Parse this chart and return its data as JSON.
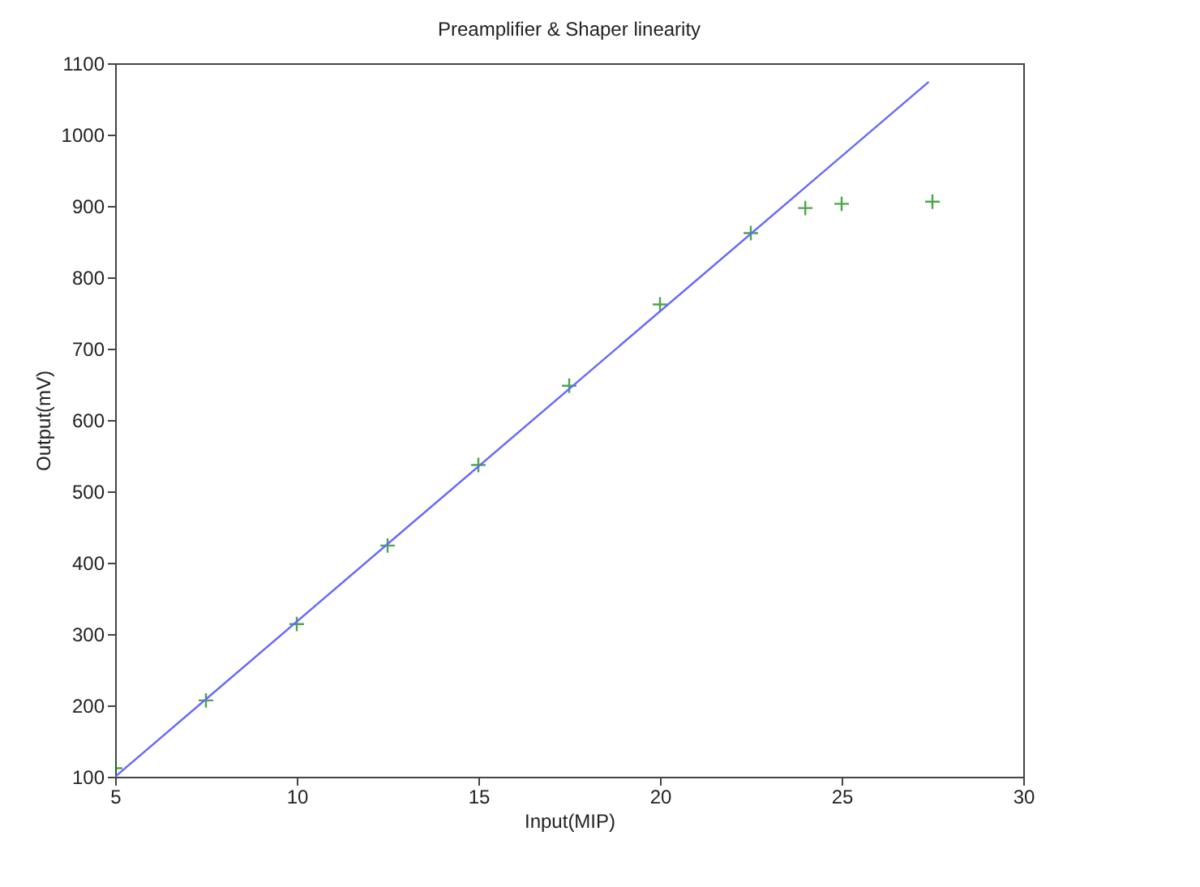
{
  "chart_data": {
    "type": "scatter",
    "title": "Preamplifier & Shaper linearity",
    "xlabel": "Input(MIP)",
    "ylabel": "Output(mV)",
    "xlim": [
      5,
      30
    ],
    "xticks": [
      5,
      10,
      15,
      20,
      25,
      30
    ],
    "ylim": [
      100,
      1100
    ],
    "yticks": [
      100,
      200,
      300,
      400,
      500,
      600,
      700,
      800,
      900,
      1000,
      1100
    ],
    "grid": false,
    "series": [
      {
        "marker": "cross",
        "color": "#008000",
        "x": [
          5,
          7.5,
          10,
          12.5,
          15,
          17.5,
          20,
          22.5,
          24,
          25,
          27.5
        ],
        "values": [
          112,
          207,
          314,
          424,
          537,
          648,
          762,
          862,
          897,
          903,
          906
        ]
      },
      {
        "type": "line",
        "marker": "none",
        "color": "#6666ff",
        "x": [
          5,
          27.4
        ],
        "values": [
          100,
          1074
        ]
      }
    ]
  }
}
